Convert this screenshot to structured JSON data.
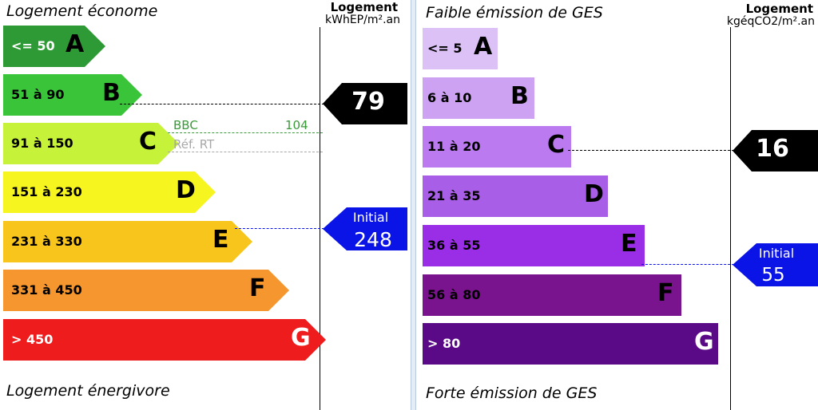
{
  "energy": {
    "heading_top": "Logement économe",
    "heading_bottom": "Logement énergivore",
    "column_title": "Logement",
    "column_unit": "kWhEP/m².an",
    "classes": [
      {
        "letter": "A",
        "range": "<= 50",
        "color": "#2e9a35",
        "text_color": "#ffffff"
      },
      {
        "letter": "B",
        "range": "51 à 90",
        "color": "#39c43a",
        "text_color": "#000000"
      },
      {
        "letter": "C",
        "range": "91 à 150",
        "color": "#c7f23a",
        "text_color": "#000000"
      },
      {
        "letter": "D",
        "range": "151 à 230",
        "color": "#f7f51f",
        "text_color": "#000000"
      },
      {
        "letter": "E",
        "range": "231 à 330",
        "color": "#f8c51c",
        "text_color": "#000000"
      },
      {
        "letter": "F",
        "range": "331 à 450",
        "color": "#f6962e",
        "text_color": "#000000"
      },
      {
        "letter": "G",
        "range": "> 450",
        "color": "#ee1c1c",
        "text_color": "#ffffff"
      }
    ],
    "current": {
      "value": "79",
      "class": "B",
      "color": "#000000"
    },
    "initial": {
      "label": "Initial",
      "value": "248",
      "class": "E",
      "color": "#0a14e6"
    },
    "references": [
      {
        "label": "BBC",
        "value": "104",
        "color": "#3a9a3a"
      },
      {
        "label": "Réf. RT",
        "value": "",
        "color": "#a8a8a8"
      }
    ]
  },
  "ges": {
    "heading_top": "Faible émission de GES",
    "heading_bottom": "Forte émission de GES",
    "column_title": "Logement",
    "column_unit": "kgéqCO2/m².an",
    "classes": [
      {
        "letter": "A",
        "range": "<= 5",
        "color": "#dcc1f6",
        "text_color": "#000000"
      },
      {
        "letter": "B",
        "range": "6 à 10",
        "color": "#cda2f2",
        "text_color": "#000000"
      },
      {
        "letter": "C",
        "range": "11 à 20",
        "color": "#bb7af0",
        "text_color": "#000000"
      },
      {
        "letter": "D",
        "range": "21 à 35",
        "color": "#a85ee6",
        "text_color": "#000000"
      },
      {
        "letter": "E",
        "range": "36 à 55",
        "color": "#9a2ee6",
        "text_color": "#000000"
      },
      {
        "letter": "F",
        "range": "56 à 80",
        "color": "#7a138e",
        "text_color": "#000000"
      },
      {
        "letter": "G",
        "range": "> 80",
        "color": "#5a0a86",
        "text_color": "#ffffff"
      }
    ],
    "current": {
      "value": "16",
      "class": "C",
      "color": "#000000"
    },
    "initial": {
      "label": "Initial",
      "value": "55",
      "class": "E",
      "color": "#0a14e6"
    }
  }
}
